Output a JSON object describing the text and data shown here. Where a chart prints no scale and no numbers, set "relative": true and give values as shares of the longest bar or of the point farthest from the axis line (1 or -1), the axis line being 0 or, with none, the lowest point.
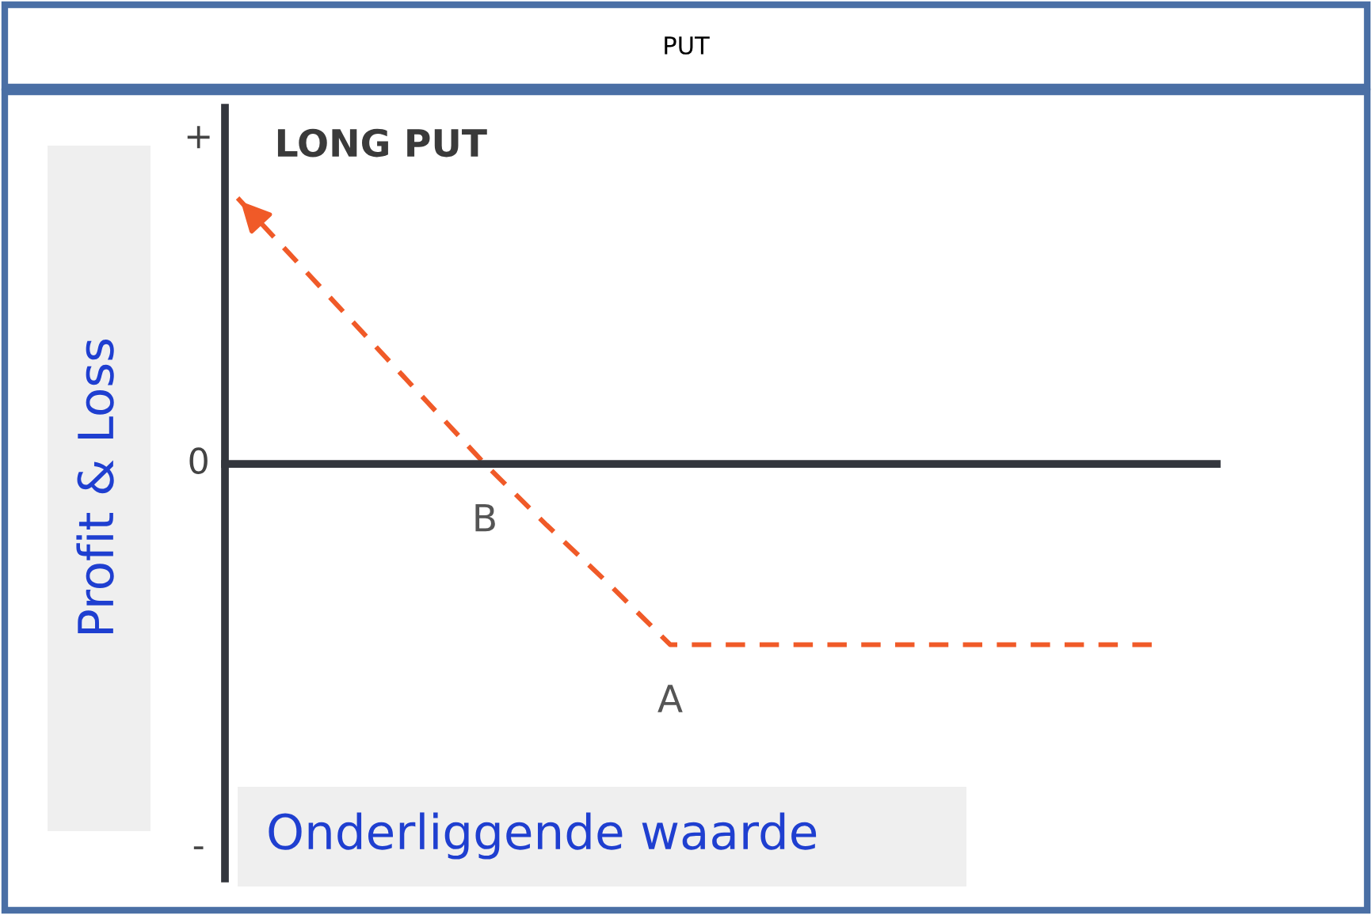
{
  "chart_data": {
    "type": "line",
    "title": "PUT",
    "subtitle": "LONG PUT",
    "ylabel": "Profit & Loss",
    "xlabel": "Onderliggende waarde",
    "relative": true,
    "categories": [
      null,
      null,
      null,
      null,
      "B",
      null,
      null,
      "A",
      null,
      null,
      null,
      null,
      null,
      null,
      null,
      null
    ],
    "series": [
      {
        "color": "#f05a28",
        "values": [
          1,
          0.75,
          0.5,
          0.25,
          0,
          -0.23,
          -0.45,
          -0.68,
          -0.68,
          -0.68,
          -0.68,
          -0.68,
          -0.68,
          -0.68,
          -0.68,
          -0.68
        ],
        "line_style": "dashed",
        "marker": "none"
      }
    ],
    "legend": false,
    "annotations": [
      "+",
      "0",
      "-"
    ]
  }
}
